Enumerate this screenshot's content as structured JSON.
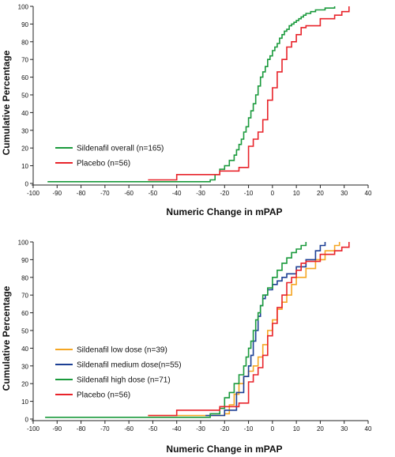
{
  "chart_data": [
    {
      "type": "line",
      "step": true,
      "xlabel": "Numeric Change in mPAP",
      "ylabel": "Cumulative Percentage",
      "xlim": [
        -100,
        40
      ],
      "ylim": [
        0,
        100
      ],
      "xticks": [
        -100,
        -90,
        -80,
        -70,
        -60,
        -50,
        -40,
        -30,
        -20,
        -10,
        0,
        10,
        20,
        30,
        40
      ],
      "yticks": [
        0,
        10,
        20,
        30,
        40,
        50,
        60,
        70,
        80,
        90,
        100
      ],
      "legend_position": "center-left",
      "series": [
        {
          "name": "Sildenafil overall (n=165)",
          "color": "#1a9a3c",
          "x": [
            -94,
            -30,
            -26,
            -24,
            -22,
            -20,
            -18,
            -16,
            -15,
            -14,
            -13,
            -12,
            -11,
            -10,
            -9,
            -8,
            -7,
            -6,
            -5,
            -4,
            -3,
            -2,
            -1,
            0,
            1,
            2,
            3,
            4,
            5,
            6,
            7,
            8,
            9,
            10,
            11,
            12,
            13,
            14,
            16,
            18,
            20,
            22,
            24,
            26
          ],
          "y": [
            1,
            1,
            2,
            5,
            8,
            10,
            13,
            16,
            19,
            22,
            25,
            29,
            32,
            37,
            41,
            45,
            50,
            55,
            60,
            63,
            66,
            70,
            72,
            75,
            77,
            79,
            82,
            84,
            86,
            87,
            89,
            90,
            91,
            92,
            93,
            94,
            95,
            96,
            97,
            98,
            98,
            99,
            99,
            100
          ]
        },
        {
          "name": "Placebo (n=56)",
          "color": "#e8232a",
          "x": [
            -52,
            -40,
            -22,
            -14,
            -10,
            -8,
            -6,
            -4,
            -2,
            0,
            2,
            4,
            6,
            8,
            10,
            12,
            14,
            20,
            26,
            29,
            32
          ],
          "y": [
            2,
            5,
            7,
            9,
            21,
            25,
            29,
            36,
            47,
            54,
            63,
            70,
            77,
            80,
            84,
            88,
            89,
            93,
            95,
            97,
            100
          ]
        }
      ]
    },
    {
      "type": "line",
      "step": true,
      "xlabel": "Numeric Change in mPAP",
      "ylabel": "Cumulative Percentage",
      "xlim": [
        -100,
        40
      ],
      "ylim": [
        0,
        100
      ],
      "xticks": [
        -100,
        -90,
        -80,
        -70,
        -60,
        -50,
        -40,
        -30,
        -20,
        -10,
        0,
        10,
        20,
        30,
        40
      ],
      "yticks": [
        0,
        10,
        20,
        30,
        40,
        50,
        60,
        70,
        80,
        90,
        100
      ],
      "legend_position": "center-left",
      "series": [
        {
          "name": "Sildenafil low dose (n=39)",
          "color": "#f5a623",
          "x": [
            -52,
            -20,
            -18,
            -16,
            -14,
            -12,
            -10,
            -8,
            -6,
            -4,
            -2,
            0,
            2,
            4,
            6,
            8,
            10,
            14,
            18,
            22,
            26,
            28
          ],
          "y": [
            2,
            3,
            8,
            14,
            20,
            24,
            27,
            30,
            35,
            42,
            50,
            56,
            62,
            66,
            70,
            76,
            80,
            85,
            90,
            95,
            98,
            100
          ]
        },
        {
          "name": "Sildenafil medium dose(n=55)",
          "color": "#1c3f94",
          "x": [
            -28,
            -20,
            -15,
            -12,
            -10,
            -9,
            -8,
            -7,
            -6,
            -5,
            -4,
            -3,
            -2,
            0,
            2,
            4,
            6,
            10,
            14,
            18,
            20,
            22
          ],
          "y": [
            2,
            5,
            15,
            24,
            30,
            36,
            44,
            50,
            58,
            64,
            68,
            70,
            73,
            76,
            78,
            80,
            82,
            86,
            90,
            95,
            98,
            100
          ]
        },
        {
          "name": "Sildenafil high dose (n=71)",
          "color": "#1a9a3c",
          "x": [
            -95,
            -30,
            -26,
            -22,
            -20,
            -18,
            -16,
            -14,
            -12,
            -11,
            -10,
            -9,
            -8,
            -7,
            -6,
            -5,
            -4,
            -2,
            0,
            2,
            4,
            6,
            8,
            10,
            12,
            14
          ],
          "y": [
            1,
            1,
            3,
            6,
            12,
            15,
            20,
            25,
            30,
            35,
            40,
            44,
            50,
            56,
            60,
            64,
            70,
            74,
            80,
            84,
            88,
            91,
            94,
            96,
            98,
            100
          ]
        },
        {
          "name": "Placebo (n=56)",
          "color": "#e8232a",
          "x": [
            -52,
            -40,
            -22,
            -14,
            -10,
            -8,
            -6,
            -4,
            -2,
            0,
            2,
            4,
            6,
            8,
            10,
            12,
            14,
            20,
            26,
            29,
            32
          ],
          "y": [
            2,
            5,
            7,
            9,
            21,
            25,
            29,
            36,
            47,
            54,
            63,
            70,
            77,
            80,
            84,
            88,
            89,
            93,
            95,
            97,
            100
          ]
        }
      ]
    }
  ]
}
